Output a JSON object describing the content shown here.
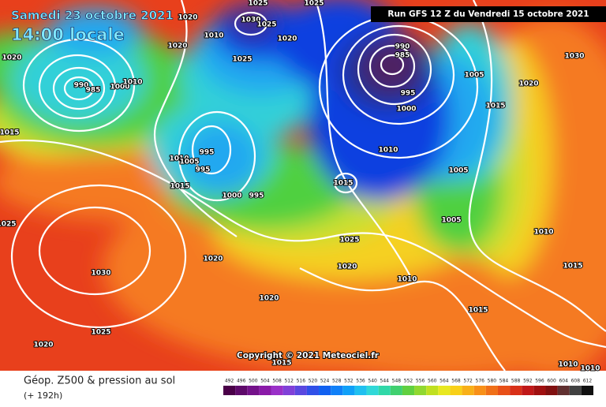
{
  "header": {
    "date": "Samedi 23 octobre 2021",
    "time": "14:00 locale",
    "run": "Run GFS 12 Z du Vendredi 15 octobre 2021"
  },
  "copyright": "Copyright © 2021 Meteociel.fr",
  "legend": {
    "title": "Géop. Z500 & pression au sol",
    "lead": "(+ 192h)",
    "scale": [
      492,
      496,
      500,
      504,
      508,
      512,
      516,
      520,
      524,
      528,
      532,
      536,
      540,
      544,
      548,
      552,
      556,
      560,
      564,
      568,
      572,
      576,
      580,
      584,
      588,
      592,
      596,
      600,
      604,
      608,
      612
    ]
  },
  "isobars": [
    1020,
    1025,
    1025,
    1030,
    1025,
    1010,
    1020,
    1020,
    1025,
    1020,
    990,
    985,
    1000,
    1010,
    990,
    985,
    995,
    1000,
    1030,
    1005,
    1020,
    1015,
    1015,
    995,
    1010,
    1005,
    995,
    1015,
    1000,
    995,
    1010,
    1005,
    1015,
    1005,
    1025,
    1010,
    1025,
    1020,
    1020,
    1015,
    1030,
    1010,
    1020,
    1015,
    1025,
    1020,
    1015,
    1010,
    1010
  ]
}
